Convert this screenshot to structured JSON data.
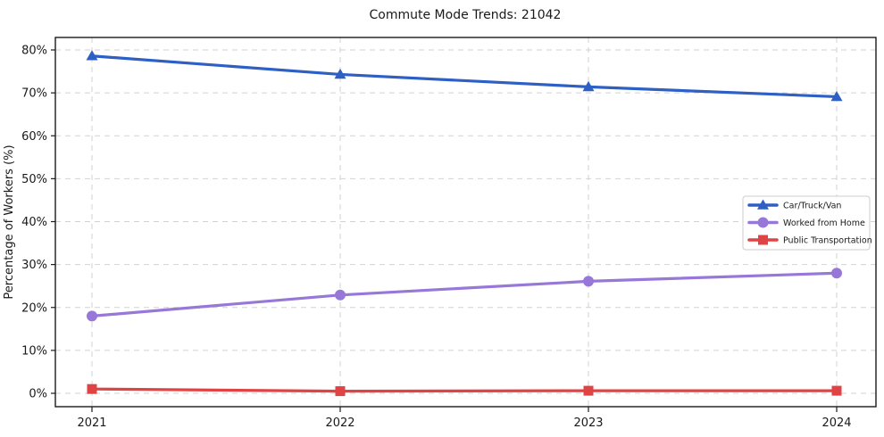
{
  "figure": {
    "title": "Commute Mode Trends: 21042",
    "y_axis_label": "Percentage of Workers (%)"
  },
  "chart_data": {
    "type": "line",
    "title": "Commute Mode Trends: 21042",
    "xlabel": "",
    "ylabel": "Percentage of Workers (%)",
    "categories": [
      "2021",
      "2022",
      "2023",
      "2024"
    ],
    "ytick_labels": [
      "0%",
      "10%",
      "20%",
      "30%",
      "40%",
      "50%",
      "60%",
      "70%",
      "80%"
    ],
    "ytick_values": [
      0,
      10,
      20,
      30,
      40,
      50,
      60,
      70,
      80
    ],
    "ylim": [
      0,
      80
    ],
    "grid": true,
    "grid_style": "dashed",
    "legend_position": "center-right",
    "series": [
      {
        "name": "Car/Truck/Van",
        "values": [
          78.6,
          74.3,
          71.4,
          69.1
        ],
        "color": "#2e5fc4",
        "marker": "triangle"
      },
      {
        "name": "Worked from Home",
        "values": [
          18.0,
          22.9,
          26.1,
          28.0
        ],
        "color": "#9778d8",
        "marker": "circle"
      },
      {
        "name": "Public Transportation",
        "values": [
          1.0,
          0.5,
          0.6,
          0.6
        ],
        "color": "#e04343",
        "marker": "square"
      }
    ]
  },
  "colors": {
    "grid": "#d2d2d2",
    "spine": "#1a1a1a",
    "tick_text": "#1a1a1a",
    "legend_border": "#cccccc",
    "legend_background": "#ffffff",
    "background": "#ffffff"
  }
}
